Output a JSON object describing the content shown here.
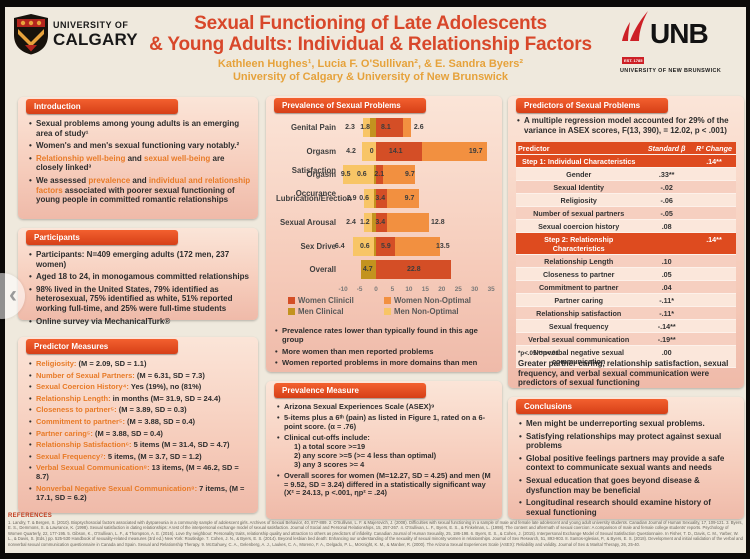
{
  "palette": {
    "header_red": "#de4b1f",
    "title_red": "#d8472a",
    "gold": "#e6a23b",
    "accent_orange": "#e87b28",
    "panel_pink": "#f6ccbb",
    "poster_bg": "#efe9dd",
    "unb_red": "#cd2026"
  },
  "carousel": {
    "prev_glyph": "‹"
  },
  "header": {
    "uc_logo": {
      "line1": "UNIVERSITY OF",
      "line2": "CALGARY"
    },
    "title_line1": "Sexual Functioning of Late Adolescents",
    "title_line2": "& Young Adults: Individual & Relationship Factors",
    "authors": "Kathleen Hughes¹, Lucia F. O'Sullivan², & E. Sandra Byers²",
    "affiliation": "University of Calgary & University of New Brunswick",
    "unb_logo": {
      "word": "UNB",
      "est": "EST. 1785",
      "line": "UNIVERSITY OF NEW BRUNSWICK"
    }
  },
  "left": {
    "introduction": {
      "title": "Introduction",
      "bullets": [
        [
          {
            "t": "Sexual problems among young adults is an emerging area of study¹"
          }
        ],
        [
          {
            "t": "Women's and men's sexual functioning vary notably.²"
          }
        ],
        [
          {
            "t": "Relationship well-being",
            "a": true
          },
          {
            "t": " and "
          },
          {
            "t": "sexual well-being",
            "a": true
          },
          {
            "t": " are closely linked³"
          }
        ],
        [
          {
            "t": "We assessed "
          },
          {
            "t": "prevalence",
            "a": true
          },
          {
            "t": " and "
          },
          {
            "t": "individual and relationship factors",
            "a": true
          },
          {
            "t": " associated with poorer sexual functioning of young people in committed romantic relationships"
          }
        ]
      ]
    },
    "participants": {
      "title": "Participants",
      "bullets": [
        "Participants: N=409 emerging adults (172 men, 237 women)",
        "Aged 18 to 24, in monogamous committed relationships",
        "98% lived in the United States, 79% identified as heterosexual, 75% identified as white, 51% reported working full-time, and 25% were full-time students",
        "Online survey via MechanicalTurk®"
      ]
    },
    "predictor_measures": {
      "title": "Predictor Measures",
      "items": [
        {
          "label": "Religiosity:",
          "rest": " (M = 2.09, SD = 1.1)"
        },
        {
          "label": "Number of Sexual Partners:",
          "rest": " (M = 6.31, SD = 7.3)"
        },
        {
          "label": "Sexual Coercion History⁴:",
          "rest": " Yes (19%), no (81%)"
        },
        {
          "label": "Relationship Length:",
          "rest": " in months (M= 31.9, SD = 24.4)"
        },
        {
          "label": "Closeness to partner⁵:",
          "rest": " (M = 3.89, SD = 0.3)"
        },
        {
          "label": "Commitment to partner⁵:",
          "rest": " (M = 3.88, SD = 0.4)"
        },
        {
          "label": "Partner caring⁵:",
          "rest": " (M = 3.88, SD = 0.4)"
        },
        {
          "label": "Relationship Satisfaction⁶:",
          "rest": " 5 items (M = 31.4, SD = 4.7)"
        },
        {
          "label": "Sexual Frequency⁷:",
          "rest": " 5 items, (M = 3.7, SD = 1.2)"
        },
        {
          "label": "Verbal Sexual Communication⁸:",
          "rest": " 13 items, (M = 46.2, SD = 8.7)"
        },
        {
          "label": "Nonverbal Negative Sexual Communication⁸:",
          "rest": " 7 items, (M = 17.1, SD = 6.2)"
        }
      ]
    }
  },
  "middle": {
    "prevalence_title": "Prevalence of Sexual Problems",
    "notes": [
      "Prevalence rates lower than typically found in this age group",
      "More women than men reported problems",
      "Women reported problems in more domains than men"
    ],
    "measure": {
      "title": "Prevalence Measure",
      "items": [
        {
          "text": "Arizona Sexual Experiences Scale (ASEX)⁹",
          "accent": true
        },
        {
          "text": "5-items plus a 6ᵗʰ (pain) as listed in Figure 1, rated on a 6-point score.  (α = .76)"
        },
        {
          "text": "Clinical cut-offs include:",
          "subs": [
            "1) a total score >=19",
            "2) any score >=5 (>= 4 less than optimal)",
            "3) any 3 scores >= 4"
          ]
        },
        {
          "text": "Overall scores for women (M=12.27, SD = 4.25) and men (M = 9.52, SD = 3.24) differed in a statistically significant way (X² = 24.13, p <.001, ηp² = .24)"
        }
      ]
    }
  },
  "right": {
    "predictors": {
      "title": "Predictors of Sexual Problems",
      "intro": "A multiple regression model accounted for 29% of the variance in ASEX scores, F(13, 390), = 12.02, p < .001)",
      "table": {
        "headers": {
          "c1": "Predictor",
          "c2": "Standard β",
          "c3": "R² Change"
        },
        "rows": [
          {
            "type": "step",
            "c1": "Step 1: Individual Characteristics",
            "c2": "",
            "c3": ".14**"
          },
          {
            "type": "data",
            "c1": "Gender",
            "c2": ".33**",
            "c3": ""
          },
          {
            "type": "data",
            "c1": "Sexual Identity",
            "c2": "-.02",
            "c3": ""
          },
          {
            "type": "data",
            "c1": "Religiosity",
            "c2": "-.06",
            "c3": ""
          },
          {
            "type": "data",
            "c1": "Number of sexual partners",
            "c2": "-.05",
            "c3": ""
          },
          {
            "type": "data",
            "c1": "Sexual coercion history",
            "c2": ".08",
            "c3": ""
          },
          {
            "type": "step",
            "c1": "Step 2: Relationship Characteristics",
            "c2": "",
            "c3": ".14**"
          },
          {
            "type": "data",
            "c1": "Relationship Length",
            "c2": ".10",
            "c3": ""
          },
          {
            "type": "data",
            "c1": "Closeness to partner",
            "c2": ".05",
            "c3": ""
          },
          {
            "type": "data",
            "c1": "Commitment to partner",
            "c2": ".04",
            "c3": ""
          },
          {
            "type": "data",
            "c1": "Partner caring",
            "c2": "-.11*",
            "c3": ""
          },
          {
            "type": "data",
            "c1": "Relationship satisfaction",
            "c2": "-.11*",
            "c3": ""
          },
          {
            "type": "data",
            "c1": "Sexual frequency",
            "c2": "-.14**",
            "c3": ""
          },
          {
            "type": "data",
            "c1": "Verbal sexual communication",
            "c2": "-.19**",
            "c3": ""
          },
          {
            "type": "data",
            "c1": "Nonverbal negative sexual communication",
            "c2": ".00",
            "c3": ""
          }
        ]
      },
      "note": "*p<.05  **p<.01",
      "summary": "Greater partner caring, relationship satisfaction, sexual frequency, and verbal sexual communication were predictors of sexual functioning"
    },
    "conclusions": {
      "title": "Conclusions",
      "bullets": [
        "Men might be underreporting sexual problems.",
        "Satisfying relationships may protect against sexual problems",
        "Global positive feelings partners may provide a safe context to communicate sexual wants and needs",
        "Sexual education that goes beyond disease & dysfunction may be beneficial",
        "Longitudinal research should examine history of sexual functioning"
      ]
    }
  },
  "chart_data": {
    "type": "bar",
    "orientation": "horizontal-diverging-stacked",
    "title": "Prevalence of Sexual Problems",
    "categories": [
      "Genital Pain",
      "Orgasm Satisfaction",
      "Orgasm Occurance",
      "Lubrication/Erection",
      "Sexual Arousal",
      "Sex Drive",
      "Overall"
    ],
    "series": [
      {
        "name": "Men Non-Optimal",
        "color": "#f8c566",
        "values": [
          2.3,
          4.2,
          9.5,
          2.9,
          2.4,
          6.4,
          0
        ]
      },
      {
        "name": "Men Clinical",
        "color": "#c3931f",
        "values": [
          1.8,
          0,
          0.6,
          0.6,
          1.2,
          0.6,
          4.7
        ]
      },
      {
        "name": "Women Clinicil",
        "color": "#d44e26",
        "values": [
          8.1,
          14.1,
          2.1,
          3.4,
          3.4,
          5.9,
          22.8
        ]
      },
      {
        "name": "Women Non-Optimal",
        "color": "#f29040",
        "values": [
          2.6,
          19.7,
          9.7,
          9.7,
          12.8,
          13.5,
          0
        ]
      }
    ],
    "value_labels": [
      [
        {
          "v": "2.3",
          "x": -7.9
        },
        {
          "v": "1.8",
          "x": -3.3
        },
        {
          "v": "8.1",
          "x": 3.0
        },
        {
          "v": "2.6",
          "x": 13.0
        }
      ],
      [
        {
          "v": "4.2",
          "x": -7.6
        },
        {
          "v": "0",
          "x": -1.3
        },
        {
          "v": "14.1",
          "x": 6.0
        },
        {
          "v": "19.7",
          "x": 30.3
        }
      ],
      [
        {
          "v": "9.5",
          "x": -9.2
        },
        {
          "v": "0.6",
          "x": -4.3
        },
        {
          "v": "2.1",
          "x": 1.0
        },
        {
          "v": "9.7",
          "x": 10.3
        }
      ],
      [
        {
          "v": "2.9",
          "x": -7.4
        },
        {
          "v": "0.6",
          "x": -3.6
        },
        {
          "v": "3.4",
          "x": 1.3
        },
        {
          "v": "9.7",
          "x": 10.2
        }
      ],
      [
        {
          "v": "2.4",
          "x": -7.6
        },
        {
          "v": "1.2",
          "x": -3.4
        },
        {
          "v": "3.4",
          "x": 1.3
        },
        {
          "v": "12.8",
          "x": 18.8
        }
      ],
      [
        {
          "v": "6.4",
          "x": -11.0
        },
        {
          "v": "0.6",
          "x": -3.4
        },
        {
          "v": "5.9",
          "x": 3.0
        },
        {
          "v": "13.5",
          "x": 20.3
        }
      ],
      [
        {
          "v": "4.7",
          "x": -2.5
        },
        {
          "v": "22.8",
          "x": 11.5
        }
      ]
    ],
    "xticks": [
      -10,
      -5,
      0,
      5,
      10,
      15,
      20,
      25,
      30,
      35
    ],
    "xlim": [
      -13,
      37
    ],
    "legend": [
      {
        "label": "Women Clinicil",
        "color": "#d44e26"
      },
      {
        "label": "Women Non-Optimal",
        "color": "#f29040"
      },
      {
        "label": "Men Clinical",
        "color": "#c3931f"
      },
      {
        "label": "Men Non-Optimal",
        "color": "#f8c566"
      }
    ],
    "grid": false,
    "legend_position": "bottom"
  },
  "references": {
    "heading": "REFERENCES",
    "text": "1. Landry, T. & Bergen, S. (2010). Biopsychosocial factors associated with dyspareunia in a community sample of adolescent girls. Archives of Sexual Behavior, 40, 877-889.  2. O'Sullivan, L. F. & Majerovich, J. (2008). Difficulties with sexual functioning in a sample of male and female late adolescent and young adult university students. Canadian Journal of Human Sexuality, 17, 109-121.  3. Byers, E. S., Demmons, S. & Lawrance, K. (1998). Sexual satisfaction in dating relationships: A test of the interpersonal exchange model of sexual satisfaction. Journal of Social and Personal Relationships, 15, 257-267.  4. O'Sullivan, L. F., Byers, E. S., & Finkelman, L. (1998). The content and aftermath of sexual coercion: A comparison of male and female college students' reports. Psychology of Women Quarterly, 22, 177-195.  5. Gibson, K., O'Sullivan, L. F., & Thompson, A. E. (2016). Love thy neighbour: Personality traits, relationship quality and attraction to others as predictors of infidelity. Canadian Journal of Human Sexuality, 25, 186-198.  6. Byers, E. S., & Cohen, J. (2015). Interpersonal Exchange Model of Sexual Satisfaction Questionnaire. In Fisher, T. D., Davis, C. M., Yarber, W. L., & Davis, S. (Eds.) pp. 525-530 Handbook of sexuality-related measures (3rd ed.) New York: Routledge.  7. Cohen, J. N., & Byers, E. S. (2014). Beyond lesbian bed death: Enhancing our understanding of the sexuality of sexual minority women in relationships. Journal of Sex Research, 51, 893-903.  8. Santos-Iglesias, P., & Byers, E. S. (2018). Development and initial validation of the verbal and nonverbal sexual communication questionnaire in Canada and Spain. Sexual and Relationship Therapy.  9. McGahuey, C. A., Gelenberg, A. J., Laukes, C. A., Moreno, F. A., Delgado, P. L., McKnight, K. M., & Manber, R. (2000). The Arizona Sexual Experiences Scale (ASEX): Reliability and validity. Journal of Sex & Marital Therapy, 26, 25-40."
  }
}
